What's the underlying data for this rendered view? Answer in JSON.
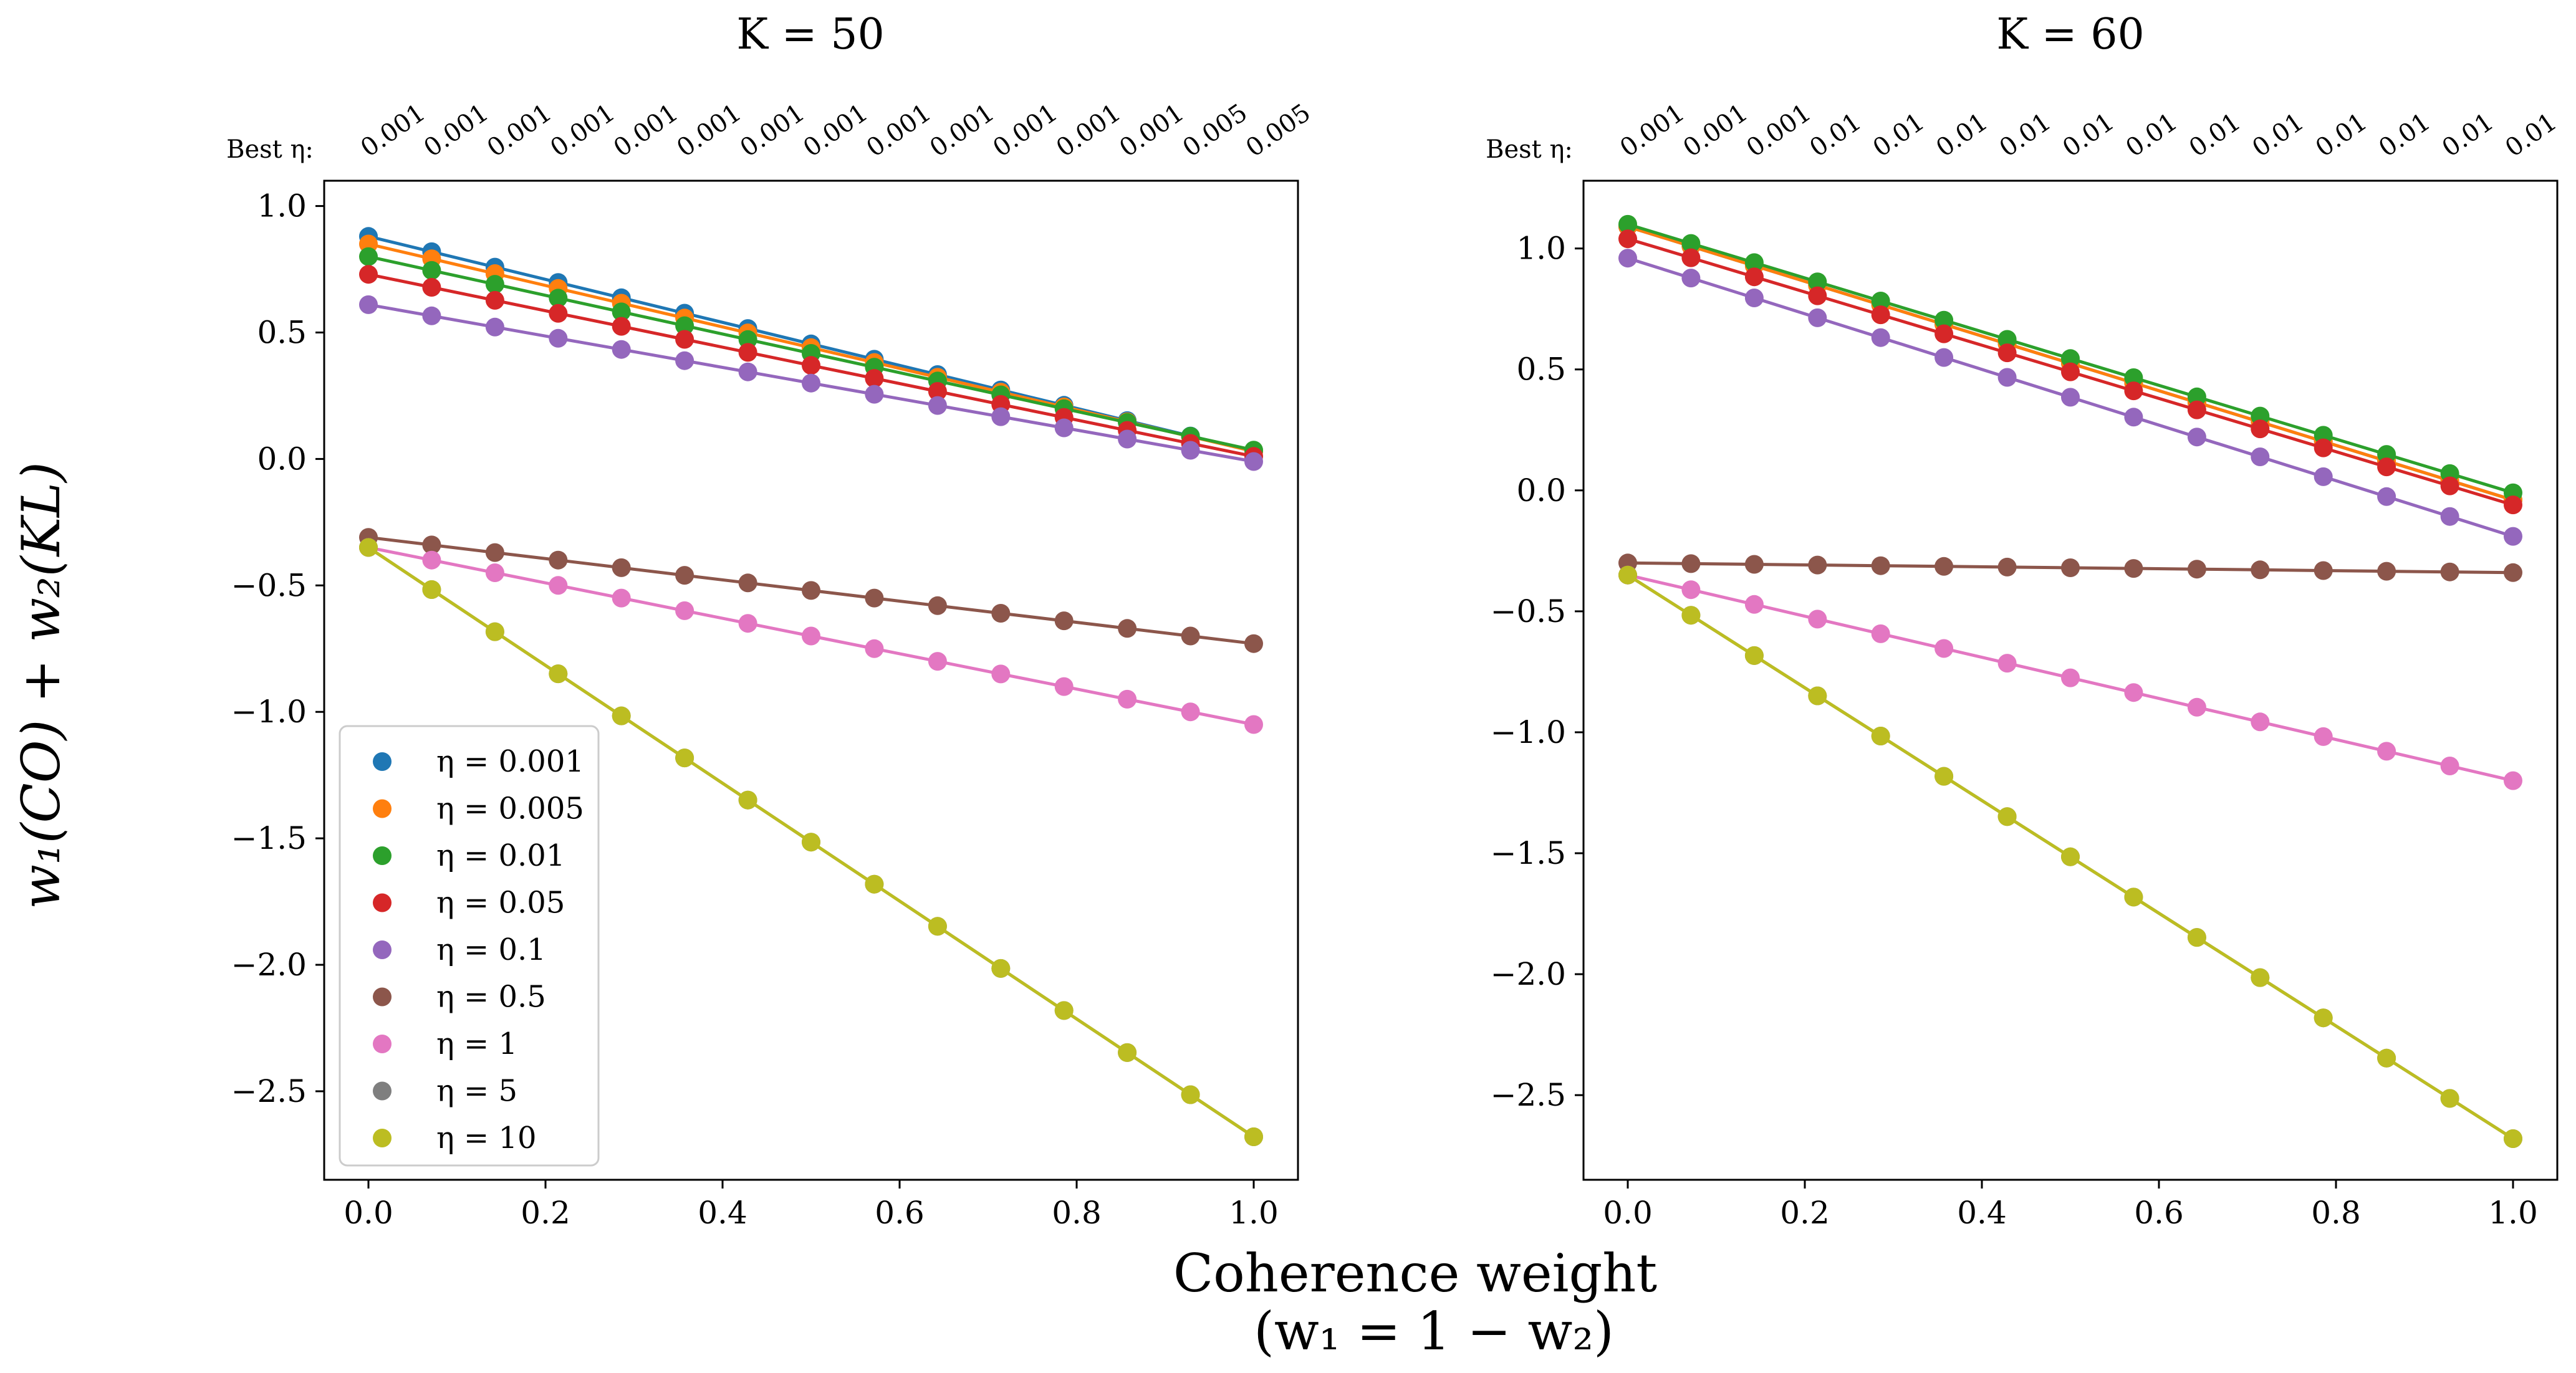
{
  "figure": {
    "xlabel_line1": "Coherence weight",
    "xlabel_line2": "(w₁ = 1 − w₂)",
    "ylabel": "w₁(CO) + w₂(KL)",
    "best_prefix": "Best η:"
  },
  "legend": {
    "placement": "lower-left of left panel",
    "entries": [
      {
        "label": "η = 0.001",
        "color": "#1f77b4"
      },
      {
        "label": "η = 0.005",
        "color": "#ff7f0e"
      },
      {
        "label": "η = 0.01",
        "color": "#2ca02c"
      },
      {
        "label": "η = 0.05",
        "color": "#d62728"
      },
      {
        "label": "η = 0.1",
        "color": "#9467bd"
      },
      {
        "label": "η = 0.5",
        "color": "#8c564b"
      },
      {
        "label": "η = 1",
        "color": "#e377c2"
      },
      {
        "label": "η = 5",
        "color": "#7f7f7f"
      },
      {
        "label": "η = 10",
        "color": "#bcbd22"
      }
    ]
  },
  "chart_data": [
    {
      "type": "line",
      "title": "K = 50",
      "xlim": [
        -0.05,
        1.05
      ],
      "ylim": [
        -2.85,
        1.1
      ],
      "xticks": [
        0.0,
        0.2,
        0.4,
        0.6,
        0.8,
        1.0
      ],
      "xtick_labels": [
        "0.0",
        "0.2",
        "0.4",
        "0.6",
        "0.8",
        "1.0"
      ],
      "yticks": [
        1.0,
        0.5,
        0.0,
        -0.5,
        -1.0,
        -1.5,
        -2.0,
        -2.5
      ],
      "ytick_labels": [
        "1.0",
        "0.5",
        "0.0",
        "−0.5",
        "−1.0",
        "−1.5",
        "−2.0",
        "−2.5"
      ],
      "x": [
        0,
        0.0714,
        0.1429,
        0.2143,
        0.2857,
        0.3571,
        0.4286,
        0.5,
        0.5714,
        0.6429,
        0.7143,
        0.7857,
        0.8571,
        0.9286,
        1.0
      ],
      "best_eta": [
        "0.001",
        "0.001",
        "0.001",
        "0.001",
        "0.001",
        "0.001",
        "0.001",
        "0.001",
        "0.001",
        "0.001",
        "0.001",
        "0.001",
        "0.001",
        "0.005",
        "0.005"
      ],
      "series": [
        {
          "name": "η = 0.001",
          "color": "#1f77b4",
          "start": 0.88,
          "end": 0.03
        },
        {
          "name": "η = 0.005",
          "color": "#ff7f0e",
          "start": 0.85,
          "end": 0.03
        },
        {
          "name": "η = 0.01",
          "color": "#2ca02c",
          "start": 0.8,
          "end": 0.035
        },
        {
          "name": "η = 0.05",
          "color": "#d62728",
          "start": 0.73,
          "end": 0.01
        },
        {
          "name": "η = 0.1",
          "color": "#9467bd",
          "start": 0.61,
          "end": -0.01
        },
        {
          "name": "η = 0.5",
          "color": "#8c564b",
          "start": -0.31,
          "end": -0.73
        },
        {
          "name": "η = 1",
          "color": "#e377c2",
          "start": -0.35,
          "end": -1.05
        },
        {
          "name": "η = 5",
          "color": "#7f7f7f",
          "start": -0.35,
          "end": -2.68
        },
        {
          "name": "η = 10",
          "color": "#bcbd22",
          "start": -0.35,
          "end": -2.68
        }
      ]
    },
    {
      "type": "line",
      "title": "K = 60",
      "xlim": [
        -0.05,
        1.05
      ],
      "ylim": [
        -2.85,
        1.28
      ],
      "xticks": [
        0.0,
        0.2,
        0.4,
        0.6,
        0.8,
        1.0
      ],
      "xtick_labels": [
        "0.0",
        "0.2",
        "0.4",
        "0.6",
        "0.8",
        "1.0"
      ],
      "yticks": [
        1.0,
        0.5,
        0.0,
        -0.5,
        -1.0,
        -1.5,
        -2.0,
        -2.5
      ],
      "ytick_labels": [
        "1.0",
        "0.5",
        "0.0",
        "−0.5",
        "−1.0",
        "−1.5",
        "−2.0",
        "−2.5"
      ],
      "x": [
        0,
        0.0714,
        0.1429,
        0.2143,
        0.2857,
        0.3571,
        0.4286,
        0.5,
        0.5714,
        0.6429,
        0.7143,
        0.7857,
        0.8571,
        0.9286,
        1.0
      ],
      "best_eta": [
        "0.001",
        "0.001",
        "0.001",
        "0.01",
        "0.01",
        "0.01",
        "0.01",
        "0.01",
        "0.01",
        "0.01",
        "0.01",
        "0.01",
        "0.01",
        "0.01",
        "0.01"
      ],
      "series": [
        {
          "name": "η = 0.001",
          "color": "#1f77b4",
          "start": 1.09,
          "end": -0.04
        },
        {
          "name": "η = 0.005",
          "color": "#ff7f0e",
          "start": 1.09,
          "end": -0.04
        },
        {
          "name": "η = 0.01",
          "color": "#2ca02c",
          "start": 1.1,
          "end": -0.01
        },
        {
          "name": "η = 0.05",
          "color": "#d62728",
          "start": 1.04,
          "end": -0.06
        },
        {
          "name": "η = 0.1",
          "color": "#9467bd",
          "start": 0.96,
          "end": -0.19
        },
        {
          "name": "η = 0.5",
          "color": "#8c564b",
          "start": -0.3,
          "end": -0.34
        },
        {
          "name": "η = 1",
          "color": "#e377c2",
          "start": -0.35,
          "end": -1.2
        },
        {
          "name": "η = 5",
          "color": "#7f7f7f",
          "start": -0.35,
          "end": -2.68
        },
        {
          "name": "η = 10",
          "color": "#bcbd22",
          "start": -0.35,
          "end": -2.68
        }
      ]
    }
  ]
}
